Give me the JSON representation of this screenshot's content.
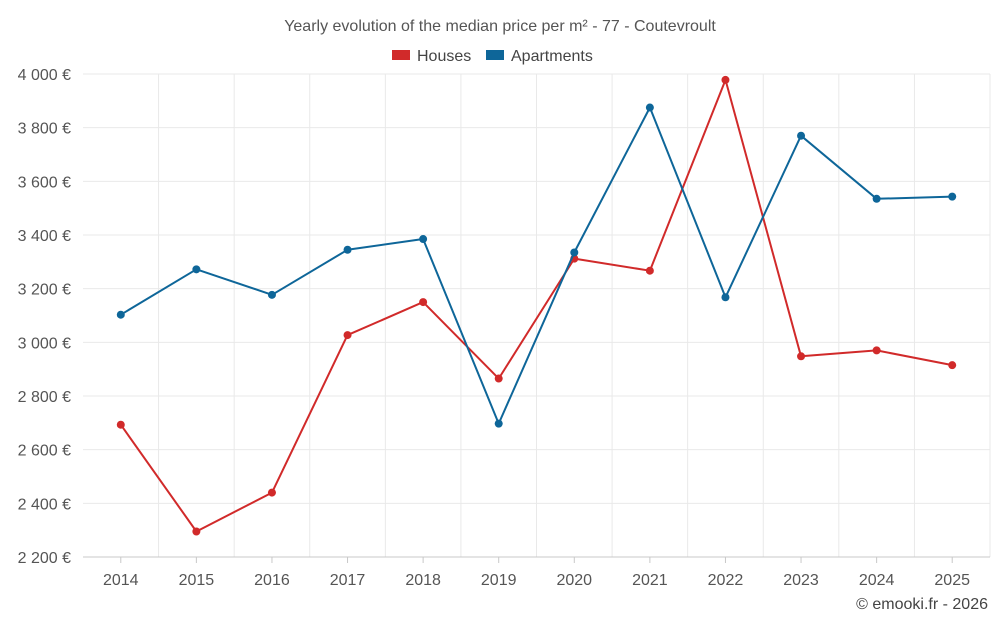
{
  "chart_data": {
    "type": "line",
    "title": "Yearly evolution of the median price per m² - 77 - Coutevroult",
    "categories": [
      "2014",
      "2015",
      "2016",
      "2017",
      "2018",
      "2019",
      "2020",
      "2021",
      "2022",
      "2023",
      "2024",
      "2025"
    ],
    "series": [
      {
        "name": "Houses",
        "color": "#d12a2a",
        "values": [
          2693,
          2295,
          2440,
          3027,
          3150,
          2865,
          3312,
          3267,
          3978,
          2948,
          2970,
          2915
        ]
      },
      {
        "name": "Apartments",
        "color": "#0e6699",
        "values": [
          3103,
          3272,
          3177,
          3345,
          3385,
          2697,
          3335,
          3875,
          3168,
          3770,
          3535,
          3543
        ]
      }
    ],
    "ylim": [
      2200,
      4000
    ],
    "yticks": [
      2200,
      2400,
      2600,
      2800,
      3000,
      3200,
      3400,
      3600,
      3800,
      4000
    ],
    "ytick_labels": [
      "2 200 €",
      "2 400 €",
      "2 600 €",
      "2 800 €",
      "3 000 €",
      "3 200 €",
      "3 400 €",
      "3 600 €",
      "3 800 €",
      "4 000 €"
    ],
    "xlabel": "",
    "ylabel": "",
    "grid": true,
    "legend": "top-center"
  },
  "credit": "© emooki.fr - 2026"
}
